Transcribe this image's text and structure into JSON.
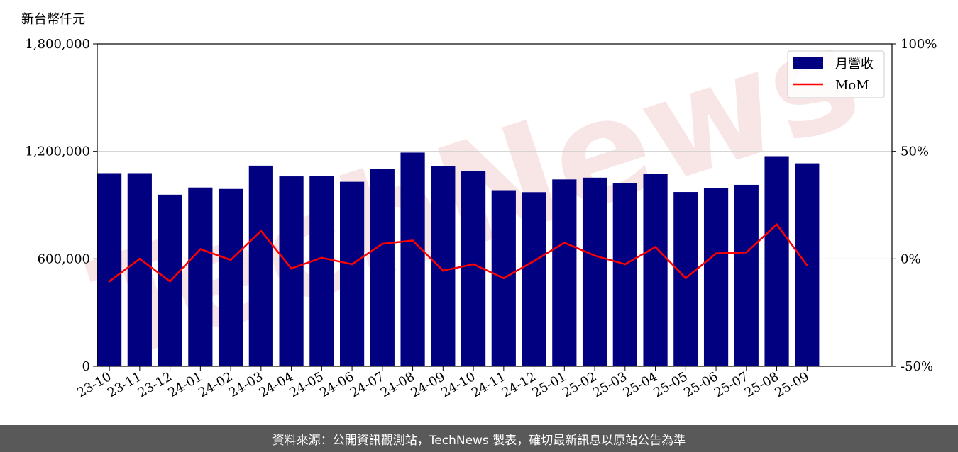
{
  "chart_data": {
    "type": "bar",
    "unit_label": "新台幣仟元",
    "categories": [
      "23-10",
      "23-11",
      "23-12",
      "24-01",
      "24-02",
      "24-03",
      "24-04",
      "24-05",
      "24-06",
      "24-07",
      "24-08",
      "24-09",
      "24-10",
      "24-11",
      "24-12",
      "25-01",
      "25-02",
      "25-03",
      "25-04",
      "25-05",
      "25-06",
      "25-07",
      "25-08",
      "25-09"
    ],
    "series": [
      {
        "name": "月營收",
        "type": "bar",
        "axis": "left",
        "color": "#000080",
        "values": [
          1078000,
          1078000,
          958000,
          998000,
          990000,
          1120000,
          1060000,
          1063000,
          1030000,
          1103000,
          1193000,
          1118000,
          1088000,
          983000,
          972000,
          1043000,
          1053000,
          1023000,
          1073000,
          973000,
          993000,
          1013000,
          1173000,
          1133000
        ]
      },
      {
        "name": "MoM",
        "type": "line",
        "axis": "right",
        "color": "#ff0000",
        "values": [
          -10.5,
          0.0,
          -10.5,
          4.5,
          -0.5,
          13.0,
          -4.5,
          0.5,
          -2.5,
          7.0,
          8.5,
          -5.5,
          -2.5,
          -9.0,
          -1.0,
          7.5,
          1.5,
          -2.5,
          5.5,
          -9.0,
          2.5,
          3.0,
          16.0,
          -3.0
        ]
      }
    ],
    "y_left": {
      "min": 0,
      "max": 1800000,
      "ticks": [
        "0",
        "600,000",
        "1,200,000",
        "1,800,000"
      ]
    },
    "y_right": {
      "min": -50,
      "max": 100,
      "ticks": [
        "-50%",
        "0%",
        "50%",
        "100%"
      ]
    },
    "grid": "horizontal",
    "legend_position": "top-right"
  },
  "watermark": "TechNews",
  "footer": "資料來源：公開資訊觀測站，TechNews 製表，確切最新訊息以原站公告為準"
}
